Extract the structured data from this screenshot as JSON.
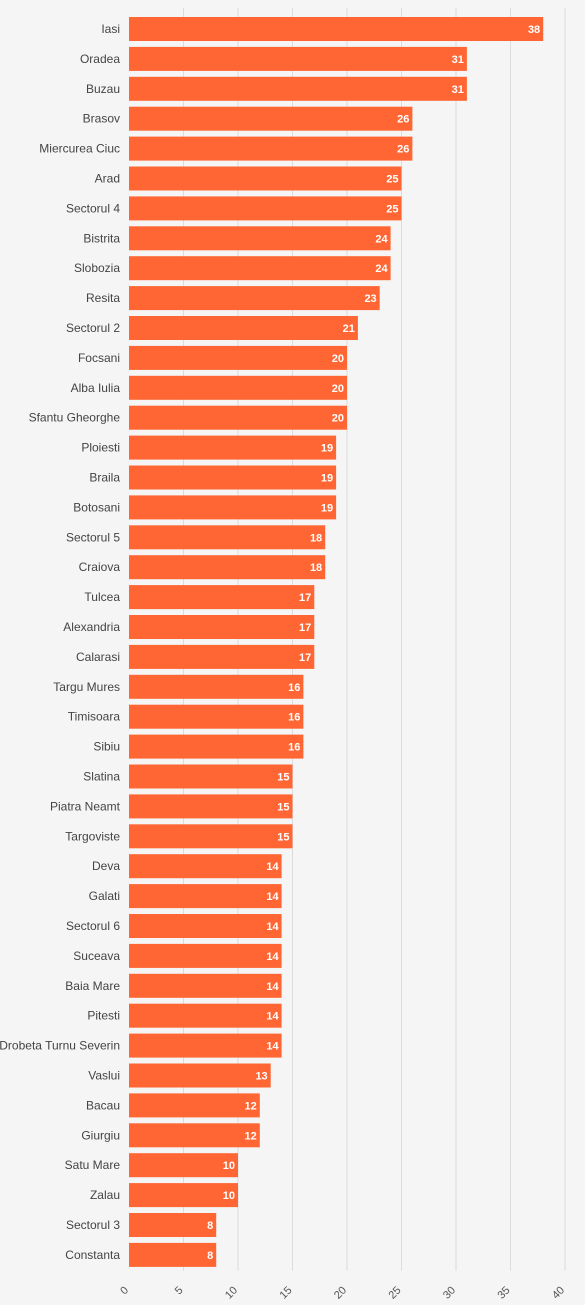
{
  "chart_data": {
    "type": "bar",
    "orientation": "horizontal",
    "categories": [
      "Iasi",
      "Oradea",
      "Buzau",
      "Brasov",
      "Miercurea Ciuc",
      "Arad",
      "Sectorul 4",
      "Bistrita",
      "Slobozia",
      "Resita",
      "Sectorul 2",
      "Focsani",
      "Alba Iulia",
      "Sfantu Gheorghe",
      "Ploiesti",
      "Braila",
      "Botosani",
      "Sectorul 5",
      "Craiova",
      "Tulcea",
      "Alexandria",
      "Calarasi",
      "Targu Mures",
      "Timisoara",
      "Sibiu",
      "Slatina",
      "Piatra Neamt",
      "Targoviste",
      "Deva",
      "Galati",
      "Sectorul 6",
      "Suceava",
      "Baia Mare",
      "Pitesti",
      "Drobeta Turnu Severin",
      "Vaslui",
      "Bacau",
      "Giurgiu",
      "Satu Mare",
      "Zalau",
      "Sectorul 3",
      "Constanta"
    ],
    "values": [
      38,
      31,
      31,
      26,
      26,
      25,
      25,
      24,
      24,
      23,
      21,
      20,
      20,
      20,
      19,
      19,
      19,
      18,
      18,
      17,
      17,
      17,
      16,
      16,
      16,
      15,
      15,
      15,
      14,
      14,
      14,
      14,
      14,
      14,
      14,
      13,
      12,
      12,
      10,
      10,
      8,
      8
    ],
    "xlim": [
      0,
      40
    ],
    "xticks": [
      0,
      5,
      10,
      15,
      20,
      25,
      30,
      35,
      40
    ],
    "grid": true,
    "data_labels": true,
    "bar_color": "#ff6633",
    "label_color": "#ffffff"
  }
}
